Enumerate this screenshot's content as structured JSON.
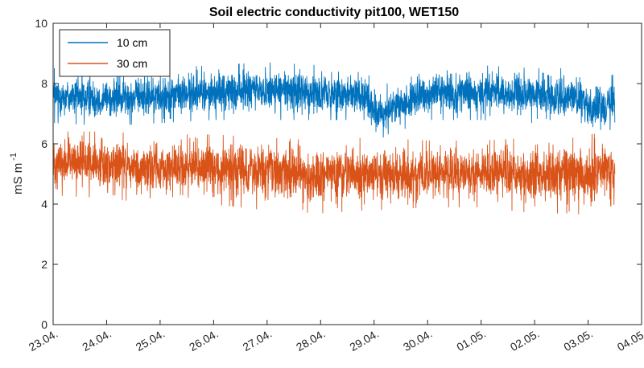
{
  "chart_data": {
    "type": "line",
    "title": "Soil electric conductivity pit100, WET150",
    "xlabel": "",
    "ylabel": "mS m",
    "ylabel_superscript": "-1",
    "ylim": [
      0,
      10
    ],
    "yticks": [
      0,
      2,
      4,
      6,
      8,
      10
    ],
    "xlim": [
      "2023-04-23",
      "2023-05-04"
    ],
    "xticks": [
      "23.04.",
      "24.04.",
      "25.04.",
      "26.04.",
      "27.04.",
      "28.04.",
      "29.04.",
      "30.04.",
      "01.05.",
      "02.05.",
      "03.05.",
      "04.05."
    ],
    "legend": {
      "placement": "top-left",
      "box": true
    },
    "grid": false,
    "series": [
      {
        "name": "10 cm",
        "color": "#0072BD",
        "x": [
          "2023-04-23",
          "2023-04-24",
          "2023-04-25",
          "2023-04-26",
          "2023-04-27",
          "2023-04-28",
          "2023-04-28T20:00",
          "2023-04-29",
          "2023-04-30",
          "2023-05-01",
          "2023-05-02",
          "2023-05-02T18:00",
          "2023-05-03",
          "2023-05-03T12:00"
        ],
        "center": [
          7.6,
          7.5,
          7.6,
          7.7,
          7.8,
          7.7,
          7.7,
          6.9,
          7.7,
          7.7,
          7.6,
          7.6,
          7.2,
          7.4
        ],
        "min": [
          6.7,
          6.6,
          6.7,
          6.8,
          6.8,
          6.8,
          6.8,
          6.1,
          6.8,
          6.8,
          6.7,
          6.7,
          6.3,
          6.5
        ],
        "max": [
          8.5,
          8.4,
          8.5,
          8.6,
          8.7,
          8.6,
          8.6,
          7.8,
          8.6,
          8.6,
          8.5,
          8.5,
          8.1,
          8.3
        ]
      },
      {
        "name": "30 cm",
        "color": "#D95319",
        "x": [
          "2023-04-23",
          "2023-04-24",
          "2023-04-25",
          "2023-04-26",
          "2023-04-27",
          "2023-04-28",
          "2023-04-28T20:00",
          "2023-04-29",
          "2023-04-30",
          "2023-05-01",
          "2023-05-02",
          "2023-05-02T18:00",
          "2023-05-03",
          "2023-05-03T12:00"
        ],
        "center": [
          5.4,
          5.3,
          5.2,
          5.2,
          5.1,
          5.0,
          5.0,
          5.0,
          5.0,
          5.0,
          5.0,
          5.0,
          5.0,
          5.1
        ],
        "min": [
          4.3,
          4.2,
          4.0,
          4.0,
          3.8,
          3.7,
          3.8,
          3.8,
          3.9,
          3.9,
          3.7,
          3.7,
          3.6,
          4.0
        ],
        "max": [
          6.4,
          6.4,
          6.3,
          6.3,
          6.2,
          6.1,
          6.2,
          6.2,
          6.1,
          6.1,
          6.2,
          6.2,
          6.3,
          6.4
        ]
      }
    ]
  }
}
